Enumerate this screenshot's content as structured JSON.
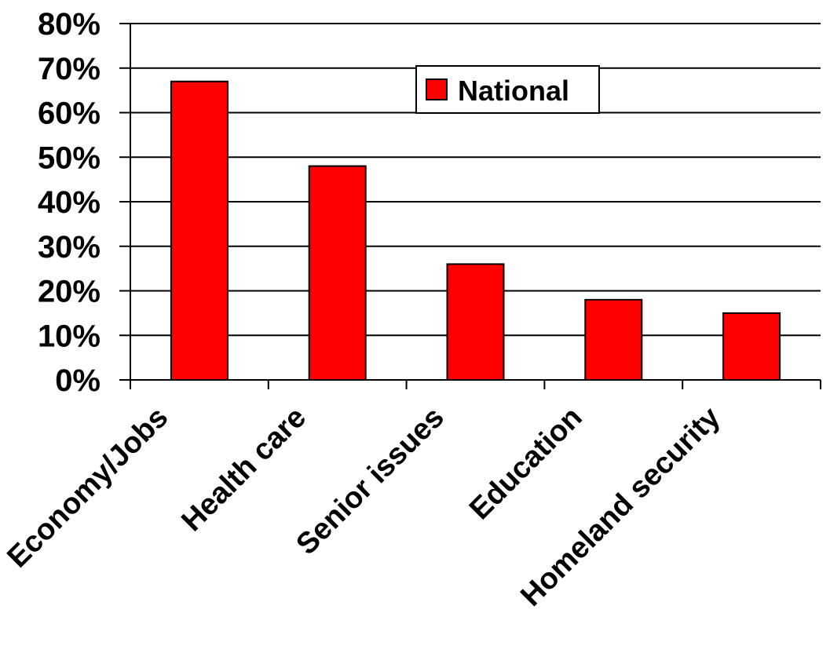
{
  "chart_data": {
    "type": "bar",
    "categories": [
      "Economy/Jobs",
      "Health care",
      "Senior issues",
      "Education",
      "Homeland security"
    ],
    "series": [
      {
        "name": "National",
        "values": [
          67,
          48,
          26,
          18,
          15
        ]
      }
    ],
    "ylim": [
      0,
      80
    ],
    "y_ticks": [
      0,
      10,
      20,
      30,
      40,
      50,
      60,
      70,
      80
    ],
    "y_tick_labels": [
      "0%",
      "10%",
      "20%",
      "30%",
      "40%",
      "50%",
      "60%",
      "70%",
      "80%"
    ],
    "grid": true,
    "legend_position": "top-center",
    "colors": {
      "bar_fill": "#ff0000",
      "bar_stroke": "#000000",
      "grid": "#000000"
    }
  }
}
